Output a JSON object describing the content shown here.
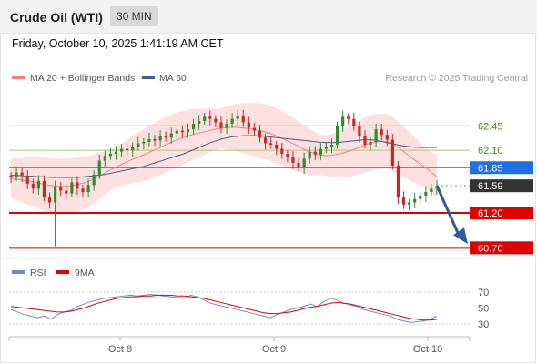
{
  "header": {
    "instrument": "Crude Oil (WTI)",
    "interval": "30 MIN",
    "datetime": "Friday, October 10, 2025 1:41:19 AM CET"
  },
  "legend": {
    "ma20_label": "MA 20 + Bollinger Bands",
    "ma50_label": "MA 50",
    "copyright": "Research © 2025 Trading Central",
    "rsi_label": "RSI",
    "rsi_ma_label": "9MA"
  },
  "colors": {
    "ma20": "#f08080",
    "ma50": "#4a5b8c",
    "bollinger_fill": "#fde0e0",
    "candle_up": "#2e8b2e",
    "candle_down": "#c62828",
    "support": "#e00000",
    "resistance": "#a8c87a",
    "current_level": "#1f6fe5",
    "price_tag": "#333333",
    "rsi": "#6a8fd6",
    "rsi_ma": "#e00000",
    "arrow": "#2b5aa0"
  },
  "chart_data": [
    {
      "type": "candlestick",
      "price_range": [
        60.6,
        62.95
      ],
      "x_ticks": [
        "Oct 8",
        "Oct 9",
        "Oct 10"
      ],
      "levels": [
        {
          "price": 62.45,
          "label": "62.45",
          "kind": "resistance"
        },
        {
          "price": 62.1,
          "label": "62.10",
          "kind": "resistance"
        },
        {
          "price": 61.85,
          "label": "61.85",
          "kind": "current-range"
        },
        {
          "price": 61.59,
          "label": "61.59",
          "kind": "last-price"
        },
        {
          "price": 61.2,
          "label": "61.20",
          "kind": "support"
        },
        {
          "price": 60.7,
          "label": "60.70",
          "kind": "support"
        }
      ],
      "last_price": 61.59,
      "projection": {
        "from": 61.59,
        "to": 60.78
      },
      "close_series": [
        61.72,
        61.78,
        61.73,
        61.62,
        61.55,
        61.66,
        61.42,
        61.35,
        61.58,
        61.52,
        61.48,
        61.64,
        61.55,
        61.5,
        61.6,
        61.75,
        61.95,
        62.02,
        62.05,
        62.08,
        62.12,
        62.1,
        62.15,
        62.2,
        62.22,
        62.26,
        62.24,
        62.3,
        62.28,
        62.34,
        62.38,
        62.36,
        62.4,
        62.48,
        62.52,
        62.58,
        62.55,
        62.5,
        62.42,
        62.48,
        62.55,
        62.6,
        62.5,
        62.42,
        62.38,
        62.28,
        62.2,
        62.18,
        62.12,
        62.05,
        62.0,
        61.92,
        61.85,
        61.98,
        62.08,
        62.04,
        62.12,
        62.15,
        62.18,
        62.45,
        62.58,
        62.55,
        62.45,
        62.3,
        62.18,
        62.22,
        62.4,
        62.32,
        62.25,
        61.88,
        61.42,
        61.32,
        61.35,
        61.4,
        61.45,
        61.5,
        61.55,
        61.59
      ],
      "ma20": [
        61.7,
        61.68,
        61.67,
        61.66,
        61.64,
        61.62,
        61.6,
        61.59,
        61.58,
        61.58,
        61.59,
        61.61,
        61.63,
        61.66,
        61.7,
        61.75,
        61.8,
        61.85,
        61.89,
        61.93,
        61.97,
        62.0,
        62.04,
        62.08,
        62.12,
        62.16,
        62.2,
        62.24,
        62.27,
        62.3,
        62.33,
        62.35,
        62.37,
        62.39,
        62.41,
        62.42,
        62.43,
        62.43,
        62.42,
        62.41,
        62.4,
        62.38,
        62.36,
        62.33,
        62.29,
        62.25,
        62.21,
        62.17,
        62.12,
        62.08,
        62.05,
        62.03,
        62.02,
        62.03,
        62.05,
        62.07,
        62.1,
        62.13,
        62.17,
        62.2,
        62.22,
        62.23,
        62.22,
        62.18,
        62.12,
        62.05,
        61.98,
        61.92,
        61.86,
        61.79,
        61.72
      ],
      "ma50": [
        61.74,
        61.74,
        61.73,
        61.73,
        61.72,
        61.72,
        61.71,
        61.71,
        61.71,
        61.71,
        61.71,
        61.72,
        61.73,
        61.74,
        61.75,
        61.77,
        61.79,
        61.81,
        61.83,
        61.85,
        61.87,
        61.9,
        61.93,
        61.96,
        61.99,
        62.02,
        62.05,
        62.09,
        62.13,
        62.17,
        62.21,
        62.24,
        62.27,
        62.29,
        62.3,
        62.31,
        62.31,
        62.31,
        62.3,
        62.29,
        62.28,
        62.27,
        62.26,
        62.25,
        62.24,
        62.23,
        62.22,
        62.21,
        62.21,
        62.21,
        62.22,
        62.23,
        62.24,
        62.25,
        62.25,
        62.24,
        62.22,
        62.2,
        62.18,
        62.16,
        62.15,
        62.14,
        62.14,
        62.14,
        62.14
      ]
    },
    {
      "type": "line",
      "title": "RSI",
      "y_ticks": [
        70,
        50,
        30
      ],
      "ylim": [
        20,
        80
      ],
      "series": [
        {
          "name": "RSI",
          "values": [
            48,
            45,
            42,
            40,
            38,
            40,
            36,
            42,
            45,
            47,
            52,
            55,
            58,
            60,
            62,
            63,
            64,
            65,
            66,
            65,
            66,
            67,
            66,
            65,
            64,
            63,
            62,
            66,
            64,
            60,
            56,
            54,
            52,
            50,
            48,
            46,
            44,
            42,
            40,
            38,
            42,
            45,
            48,
            50,
            52,
            55,
            52,
            58,
            62,
            60,
            56,
            54,
            52,
            48,
            46,
            44,
            42,
            40,
            36,
            34,
            32,
            33,
            34,
            36,
            40
          ]
        },
        {
          "name": "9MA",
          "values": [
            52,
            51,
            50,
            49,
            48,
            47,
            46,
            45,
            45,
            46,
            48,
            50,
            53,
            56,
            58,
            60,
            62,
            63,
            64,
            64,
            65,
            65,
            66,
            66,
            66,
            65,
            65,
            64,
            63,
            62,
            60,
            58,
            56,
            54,
            52,
            50,
            48,
            46,
            44,
            43,
            43,
            44,
            45,
            47,
            49,
            51,
            52,
            54,
            56,
            57,
            56,
            55,
            53,
            51,
            49,
            47,
            45,
            43,
            41,
            39,
            37,
            36,
            35,
            35,
            36
          ]
        }
      ]
    }
  ]
}
